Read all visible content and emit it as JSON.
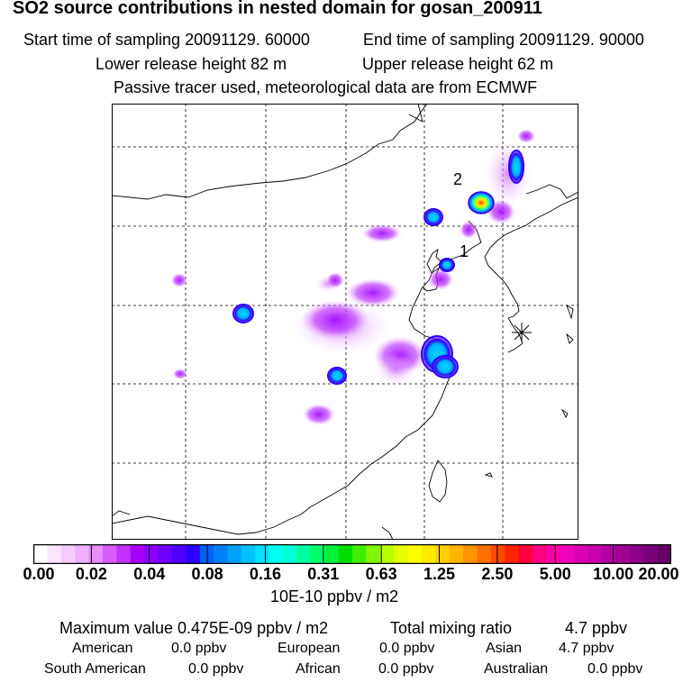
{
  "title": "SO2 source contributions in nested domain for gosan_200911",
  "header": {
    "start_time": "Start time of sampling 20091129. 60000",
    "end_time": "End time of sampling 20091129. 90000",
    "lower_height": "Lower release height   82 m",
    "upper_height": "Upper release height   62 m",
    "tracer_note": "Passive tracer used, meteorological data are from ECMWF"
  },
  "map": {
    "region": "East Asia nested domain",
    "markers": [
      {
        "label": "1",
        "kind": "source-region"
      },
      {
        "label": "2",
        "kind": "source-region"
      }
    ],
    "receptor": "gosan"
  },
  "colorbar": {
    "ticks": [
      "0.00",
      "0.02",
      "0.04",
      "0.08",
      "0.16",
      "0.31",
      "0.63",
      "1.25",
      "2.50",
      "5.00",
      "10.00",
      "20.00"
    ],
    "unit": "10E-10 ppbv / m2",
    "colors": [
      "#ffffff",
      "#fce6ff",
      "#f6ccff",
      "#eeb0ff",
      "#e68cff",
      "#d95cff",
      "#c232ff",
      "#a800ff",
      "#8c00ff",
      "#6e00ff",
      "#4c00ff",
      "#2a00ff",
      "#0060ff",
      "#0080ff",
      "#00a0ff",
      "#00c0ff",
      "#00e0ff",
      "#00ffee",
      "#00ffd2",
      "#00ffa0",
      "#00ff6c",
      "#00f23c",
      "#00dd00",
      "#40ee00",
      "#80f500",
      "#b8ff00",
      "#e6ff00",
      "#ffff00",
      "#ffea00",
      "#ffd000",
      "#ffb400",
      "#ff9400",
      "#ff7000",
      "#ff4a00",
      "#ff2400",
      "#ff0040",
      "#ff0080",
      "#ff00a8",
      "#f000b8",
      "#dc00b4",
      "#c800ac",
      "#b400a0",
      "#a00094",
      "#8c0088",
      "#780078",
      "#640064"
    ]
  },
  "stats": {
    "max_value": "Maximum value  0.475E-09 ppbv / m2",
    "total_label": "Total mixing ratio",
    "total_value": "4.7 ppbv",
    "regions": [
      {
        "name": "American",
        "value": "0.0 ppbv"
      },
      {
        "name": "European",
        "value": "0.0 ppbv"
      },
      {
        "name": "Asian",
        "value": "4.7 ppbv"
      },
      {
        "name": "South American",
        "value": "0.0 ppbv"
      },
      {
        "name": "African",
        "value": "0.0 ppbv"
      },
      {
        "name": "Australian",
        "value": "0.0 ppbv"
      }
    ]
  }
}
